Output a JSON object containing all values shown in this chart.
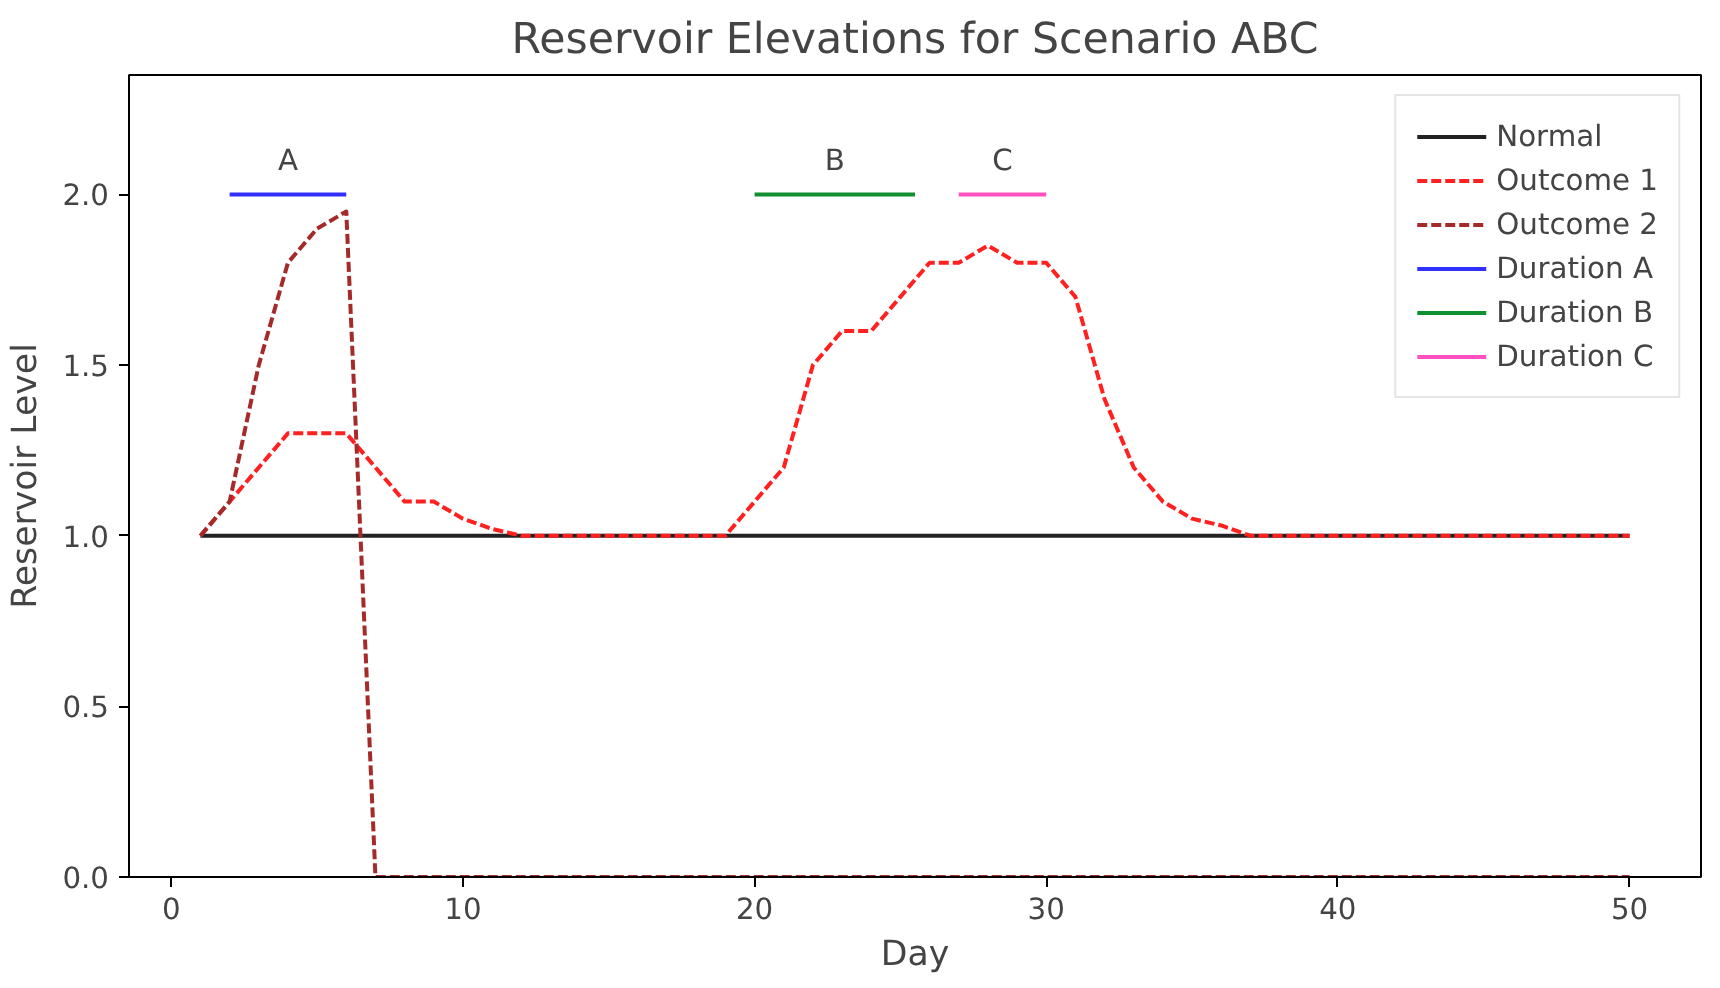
{
  "chart_data": {
    "type": "line",
    "title": "Reservoir Elevations for Scenario ABC",
    "xlabel": "Day",
    "ylabel": "Reservoir Level",
    "xlim": [
      -1.45,
      52.45
    ],
    "ylim": [
      0,
      2.35
    ],
    "xticks": [
      0,
      10,
      20,
      30,
      40,
      50
    ],
    "yticks": [
      {
        "value": 0,
        "label": "0.0"
      },
      {
        "value": 0.5,
        "label": "0.5"
      },
      {
        "value": 1,
        "label": "1.0"
      },
      {
        "value": 1.5,
        "label": "1.5"
      },
      {
        "value": 2,
        "label": "2.0"
      }
    ],
    "grid": false,
    "legend": "top right",
    "marker": "none",
    "series": [
      {
        "name": "Normal",
        "color": "#222222",
        "line_style": "solid",
        "x": [
          1,
          50
        ],
        "values": [
          1,
          1
        ]
      },
      {
        "name": "Outcome 1",
        "color": "#ff2020",
        "line_style": "dashed",
        "x": [
          1,
          2,
          3,
          4,
          5,
          6,
          7,
          8,
          9,
          10,
          11,
          12,
          13,
          14,
          15,
          16,
          17,
          18,
          19,
          20,
          21,
          22,
          23,
          24,
          25,
          26,
          27,
          28,
          29,
          30,
          31,
          32,
          33,
          34,
          35,
          36,
          37,
          38,
          39,
          40,
          41,
          42,
          43,
          44,
          45,
          46,
          47,
          48,
          49,
          50
        ],
        "values": [
          1,
          1.1,
          1.2,
          1.3,
          1.3,
          1.3,
          1.2,
          1.1,
          1.1,
          1.05,
          1.02,
          1,
          1,
          1,
          1,
          1,
          1,
          1,
          1,
          1.1,
          1.2,
          1.5,
          1.6,
          1.6,
          1.7,
          1.8,
          1.8,
          1.85,
          1.8,
          1.8,
          1.7,
          1.4,
          1.2,
          1.1,
          1.05,
          1.03,
          1,
          1,
          1,
          1,
          1,
          1,
          1,
          1,
          1,
          1,
          1,
          1,
          1,
          1
        ]
      },
      {
        "name": "Outcome 2",
        "color": "#a52a2a",
        "line_style": "dashed",
        "x": [
          1,
          2,
          3,
          4,
          5,
          6,
          7,
          8,
          50
        ],
        "values": [
          1,
          1.1,
          1.5,
          1.8,
          1.9,
          1.95,
          0,
          0,
          0
        ]
      },
      {
        "name": "Duration A",
        "color": "#3030ff",
        "line_style": "solid",
        "x": [
          2,
          6
        ],
        "values": [
          2,
          2
        ]
      },
      {
        "name": "Duration B",
        "color": "#109030",
        "line_style": "solid",
        "x": [
          20,
          25.5
        ],
        "values": [
          2,
          2
        ]
      },
      {
        "name": "Duration C",
        "color": "#ff50c0",
        "line_style": "solid",
        "x": [
          27,
          30
        ],
        "values": [
          2,
          2
        ]
      }
    ],
    "annotations": [
      {
        "text": "A",
        "x": 4,
        "y": 2
      },
      {
        "text": "B",
        "x": 22.75,
        "y": 2
      },
      {
        "text": "C",
        "x": 28.5,
        "y": 2
      }
    ]
  }
}
